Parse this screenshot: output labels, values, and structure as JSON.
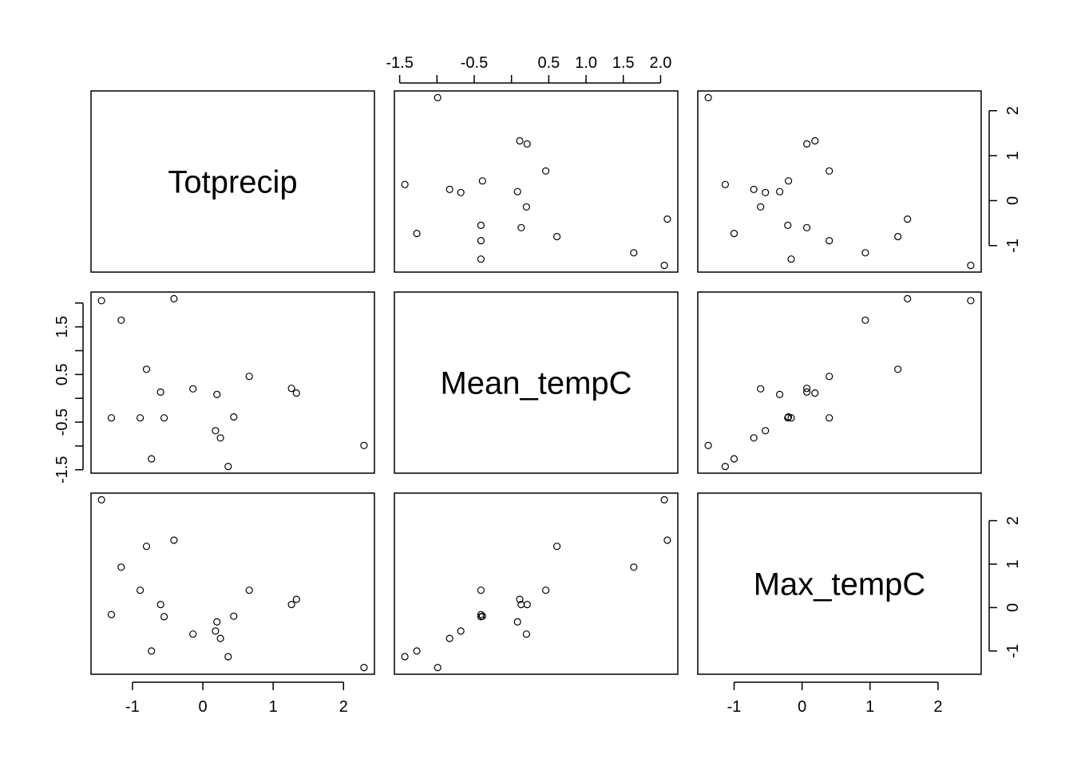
{
  "chart_data": {
    "type": "scatter",
    "subtype": "pairs-matrix",
    "variables": [
      "Totprecip",
      "Mean_tempC",
      "Max_tempC"
    ],
    "observations": {
      "Totprecip": [
        2.29,
        0.36,
        -0.73,
        0.25,
        -0.14,
        0.18,
        0.2,
        0.44,
        -0.55,
        -1.3,
        1.26,
        -0.6,
        1.33,
        0.66,
        -0.89,
        -1.16,
        -0.8,
        -0.41,
        -1.44
      ],
      "Mean_tempC": [
        -0.99,
        -1.43,
        -1.27,
        -0.83,
        0.2,
        -0.68,
        0.08,
        -0.39,
        -0.41,
        -0.41,
        0.21,
        0.13,
        0.11,
        0.46,
        -0.41,
        1.64,
        0.61,
        2.09,
        2.05
      ],
      "Max_tempC": [
        -1.38,
        -1.13,
        -1.0,
        -0.71,
        -0.61,
        -0.54,
        -0.33,
        -0.2,
        -0.21,
        -0.16,
        0.07,
        0.07,
        0.19,
        0.4,
        0.4,
        0.93,
        1.41,
        1.55,
        2.48
      ]
    },
    "axes": {
      "Totprecip": {
        "ticks": [
          -1,
          0,
          1,
          2
        ],
        "labels": [
          "-1",
          "0",
          "1",
          "2"
        ]
      },
      "Mean_tempC": {
        "ticks": [
          -1.5,
          -1.0,
          -0.5,
          0,
          0.5,
          1.0,
          1.5,
          2.0
        ],
        "top_labels": [
          "-1.5",
          "",
          "-0.5",
          "",
          "0.5",
          "1.0",
          "1.5",
          "2.0"
        ],
        "left_labels": [
          "-1.5",
          "",
          "-0.5",
          "",
          "0.5",
          "",
          "1.5",
          ""
        ]
      },
      "Max_tempC": {
        "ticks": [
          -1,
          0,
          1,
          2
        ],
        "labels": [
          "-1",
          "0",
          "1",
          "2"
        ]
      }
    },
    "grid": false,
    "legend": "none"
  }
}
